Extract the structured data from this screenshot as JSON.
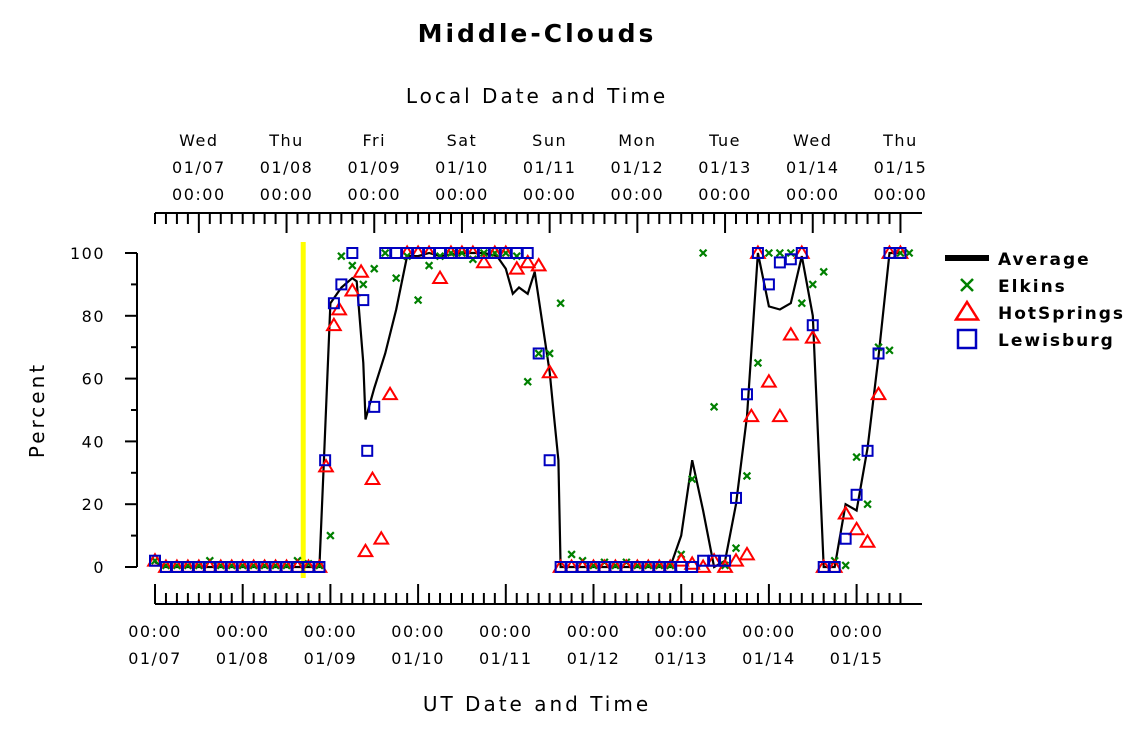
{
  "chart_data": {
    "type": "line",
    "title": "Middle-Clouds",
    "xlabel_top": "Local Date and Time",
    "xlabel": "UT Date and Time",
    "ylabel": "Percent",
    "ylim": [
      0,
      100
    ],
    "y_ticks": [
      "0",
      "20",
      "40",
      "60",
      "80",
      "100"
    ],
    "x_range_days": [
      0,
      8.6
    ],
    "top_ticks": [
      {
        "day": 0.5,
        "weekday": "Wed",
        "date": "01/07",
        "time": "00:00"
      },
      {
        "day": 1.5,
        "weekday": "Thu",
        "date": "01/08",
        "time": "00:00"
      },
      {
        "day": 2.5,
        "weekday": "Fri",
        "date": "01/09",
        "time": "00:00"
      },
      {
        "day": 3.5,
        "weekday": "Sat",
        "date": "01/10",
        "time": "00:00"
      },
      {
        "day": 4.5,
        "weekday": "Sun",
        "date": "01/11",
        "time": "00:00"
      },
      {
        "day": 5.5,
        "weekday": "Mon",
        "date": "01/12",
        "time": "00:00"
      },
      {
        "day": 6.5,
        "weekday": "Tue",
        "date": "01/13",
        "time": "00:00"
      },
      {
        "day": 7.5,
        "weekday": "Wed",
        "date": "01/14",
        "time": "00:00"
      },
      {
        "day": 8.5,
        "weekday": "Thu",
        "date": "01/15",
        "time": "00:00"
      }
    ],
    "bottom_ticks": [
      {
        "day": 0,
        "time": "00:00",
        "date": "01/07"
      },
      {
        "day": 1,
        "time": "00:00",
        "date": "01/08"
      },
      {
        "day": 2,
        "time": "00:00",
        "date": "01/09"
      },
      {
        "day": 3,
        "time": "00:00",
        "date": "01/10"
      },
      {
        "day": 4,
        "time": "00:00",
        "date": "01/11"
      },
      {
        "day": 5,
        "time": "00:00",
        "date": "01/12"
      },
      {
        "day": 6,
        "time": "00:00",
        "date": "01/13"
      },
      {
        "day": 7,
        "time": "00:00",
        "date": "01/14"
      },
      {
        "day": 8,
        "time": "00:00",
        "date": "01/15"
      }
    ],
    "marker_line_day": 1.69,
    "marker_line_color": "#ffff00",
    "legend_position": "right",
    "series": [
      {
        "name": "Average",
        "kind": "line",
        "color": "#000000",
        "points": [
          [
            0,
            1.5
          ],
          [
            0.125,
            0
          ],
          [
            0.25,
            0
          ],
          [
            0.5,
            0
          ],
          [
            0.75,
            0
          ],
          [
            1.0,
            0
          ],
          [
            1.25,
            0
          ],
          [
            1.5,
            0
          ],
          [
            1.75,
            0
          ],
          [
            1.875,
            0
          ],
          [
            1.92,
            30
          ],
          [
            2.0,
            84
          ],
          [
            2.125,
            89
          ],
          [
            2.25,
            92
          ],
          [
            2.3,
            91
          ],
          [
            2.375,
            65
          ],
          [
            2.4,
            47
          ],
          [
            2.5,
            57
          ],
          [
            2.625,
            68
          ],
          [
            2.75,
            82
          ],
          [
            2.875,
            99
          ],
          [
            3.0,
            99
          ],
          [
            3.125,
            100
          ],
          [
            3.25,
            99
          ],
          [
            3.5,
            100
          ],
          [
            3.75,
            100
          ],
          [
            3.9,
            99
          ],
          [
            4.0,
            95
          ],
          [
            4.08,
            87
          ],
          [
            4.15,
            89
          ],
          [
            4.25,
            87
          ],
          [
            4.33,
            94
          ],
          [
            4.5,
            62
          ],
          [
            4.55,
            48
          ],
          [
            4.6,
            34
          ],
          [
            4.625,
            0
          ],
          [
            4.75,
            0
          ],
          [
            5.0,
            0
          ],
          [
            5.25,
            0
          ],
          [
            5.5,
            0
          ],
          [
            5.75,
            0
          ],
          [
            5.875,
            0
          ],
          [
            6.0,
            10
          ],
          [
            6.125,
            34
          ],
          [
            6.25,
            18
          ],
          [
            6.375,
            0
          ],
          [
            6.5,
            2
          ],
          [
            6.625,
            20
          ],
          [
            6.75,
            48
          ],
          [
            6.875,
            100
          ],
          [
            7.0,
            83
          ],
          [
            7.125,
            82
          ],
          [
            7.25,
            84
          ],
          [
            7.375,
            99
          ],
          [
            7.5,
            80
          ],
          [
            7.625,
            0
          ],
          [
            7.75,
            0
          ],
          [
            7.875,
            20
          ],
          [
            8.0,
            18
          ],
          [
            8.125,
            38
          ],
          [
            8.25,
            67
          ],
          [
            8.375,
            100
          ],
          [
            8.5,
            100
          ]
        ]
      },
      {
        "name": "Elkins",
        "kind": "x",
        "color": "#008000",
        "points": [
          [
            0,
            2
          ],
          [
            0.125,
            0.5
          ],
          [
            0.25,
            0.5
          ],
          [
            0.375,
            0.5
          ],
          [
            0.5,
            0.5
          ],
          [
            0.625,
            2
          ],
          [
            0.75,
            0.5
          ],
          [
            0.875,
            0.5
          ],
          [
            1.0,
            0.5
          ],
          [
            1.125,
            0.5
          ],
          [
            1.25,
            0.5
          ],
          [
            1.375,
            0.5
          ],
          [
            1.5,
            0.5
          ],
          [
            1.625,
            2
          ],
          [
            1.75,
            1
          ],
          [
            1.875,
            0.5
          ],
          [
            2.0,
            10
          ],
          [
            2.125,
            99
          ],
          [
            2.25,
            96
          ],
          [
            2.375,
            90
          ],
          [
            2.5,
            95
          ],
          [
            2.625,
            100
          ],
          [
            2.75,
            92
          ],
          [
            2.875,
            99
          ],
          [
            3.0,
            85
          ],
          [
            3.125,
            96
          ],
          [
            3.25,
            99
          ],
          [
            3.375,
            100
          ],
          [
            3.5,
            100
          ],
          [
            3.625,
            98
          ],
          [
            3.75,
            100
          ],
          [
            3.875,
            100
          ],
          [
            4.0,
            100
          ],
          [
            4.125,
            99
          ],
          [
            4.25,
            59
          ],
          [
            4.375,
            68
          ],
          [
            4.5,
            68
          ],
          [
            4.625,
            84
          ],
          [
            4.75,
            4
          ],
          [
            4.875,
            2
          ],
          [
            5.0,
            0.5
          ],
          [
            5.125,
            1.5
          ],
          [
            5.25,
            0.5
          ],
          [
            5.375,
            1.5
          ],
          [
            5.5,
            0.5
          ],
          [
            5.625,
            0.5
          ],
          [
            5.75,
            0.5
          ],
          [
            5.875,
            0.5
          ],
          [
            6.0,
            4
          ],
          [
            6.125,
            28
          ],
          [
            6.25,
            100
          ],
          [
            6.375,
            51
          ],
          [
            6.5,
            0.5
          ],
          [
            6.625,
            6
          ],
          [
            6.75,
            29
          ],
          [
            6.875,
            65
          ],
          [
            7.0,
            100
          ],
          [
            7.125,
            100
          ],
          [
            7.25,
            100
          ],
          [
            7.375,
            84
          ],
          [
            7.5,
            90
          ],
          [
            7.625,
            94
          ],
          [
            7.75,
            2
          ],
          [
            7.875,
            0.5
          ],
          [
            8.0,
            35
          ],
          [
            8.125,
            20
          ],
          [
            8.25,
            70
          ],
          [
            8.375,
            69
          ],
          [
            8.5,
            100
          ],
          [
            8.6,
            100
          ]
        ]
      },
      {
        "name": "HotSprings",
        "kind": "triangle",
        "color": "#ff0000",
        "points": [
          [
            0,
            2
          ],
          [
            0.125,
            0
          ],
          [
            0.25,
            0
          ],
          [
            0.375,
            0
          ],
          [
            0.5,
            0
          ],
          [
            0.625,
            0
          ],
          [
            0.75,
            0
          ],
          [
            0.875,
            0
          ],
          [
            1.0,
            0
          ],
          [
            1.125,
            0
          ],
          [
            1.25,
            0
          ],
          [
            1.375,
            0
          ],
          [
            1.5,
            0
          ],
          [
            1.625,
            0
          ],
          [
            1.75,
            0
          ],
          [
            1.875,
            0
          ],
          [
            1.95,
            32
          ],
          [
            2.04,
            77
          ],
          [
            2.1,
            82
          ],
          [
            2.25,
            88
          ],
          [
            2.35,
            94
          ],
          [
            2.4,
            5
          ],
          [
            2.48,
            28
          ],
          [
            2.58,
            9
          ],
          [
            2.68,
            55
          ],
          [
            2.875,
            100
          ],
          [
            3.0,
            100
          ],
          [
            3.125,
            100
          ],
          [
            3.25,
            92
          ],
          [
            3.375,
            100
          ],
          [
            3.5,
            100
          ],
          [
            3.625,
            100
          ],
          [
            3.75,
            97
          ],
          [
            3.875,
            100
          ],
          [
            4.0,
            100
          ],
          [
            4.125,
            95
          ],
          [
            4.25,
            97
          ],
          [
            4.375,
            96
          ],
          [
            4.5,
            62
          ],
          [
            4.625,
            0
          ],
          [
            4.75,
            0
          ],
          [
            4.875,
            0
          ],
          [
            5.0,
            0
          ],
          [
            5.125,
            0
          ],
          [
            5.25,
            0
          ],
          [
            5.375,
            0
          ],
          [
            5.5,
            0
          ],
          [
            5.625,
            0
          ],
          [
            5.75,
            0
          ],
          [
            5.875,
            0
          ],
          [
            6.0,
            2
          ],
          [
            6.125,
            1
          ],
          [
            6.25,
            0
          ],
          [
            6.375,
            2
          ],
          [
            6.5,
            0
          ],
          [
            6.625,
            2
          ],
          [
            6.75,
            4
          ],
          [
            6.8,
            48
          ],
          [
            6.875,
            100
          ],
          [
            7.0,
            59
          ],
          [
            7.125,
            48
          ],
          [
            7.25,
            74
          ],
          [
            7.375,
            100
          ],
          [
            7.5,
            73
          ],
          [
            7.625,
            0
          ],
          [
            7.75,
            0
          ],
          [
            7.875,
            17
          ],
          [
            8.0,
            12
          ],
          [
            8.125,
            8
          ],
          [
            8.25,
            55
          ],
          [
            8.375,
            100
          ],
          [
            8.5,
            100
          ]
        ]
      },
      {
        "name": "Lewisburg",
        "kind": "square",
        "color": "#0000c0",
        "points": [
          [
            0,
            2
          ],
          [
            0.125,
            0
          ],
          [
            0.25,
            0
          ],
          [
            0.375,
            0
          ],
          [
            0.5,
            0
          ],
          [
            0.625,
            0
          ],
          [
            0.75,
            0
          ],
          [
            0.875,
            0
          ],
          [
            1.0,
            0
          ],
          [
            1.125,
            0
          ],
          [
            1.25,
            0
          ],
          [
            1.375,
            0
          ],
          [
            1.5,
            0
          ],
          [
            1.625,
            0
          ],
          [
            1.75,
            0
          ],
          [
            1.875,
            0
          ],
          [
            1.94,
            34
          ],
          [
            2.04,
            84
          ],
          [
            2.125,
            90
          ],
          [
            2.25,
            100
          ],
          [
            2.375,
            85
          ],
          [
            2.42,
            37
          ],
          [
            2.5,
            51
          ],
          [
            2.625,
            100
          ],
          [
            2.75,
            100
          ],
          [
            2.875,
            100
          ],
          [
            3.0,
            100
          ],
          [
            3.125,
            100
          ],
          [
            3.25,
            100
          ],
          [
            3.375,
            100
          ],
          [
            3.5,
            100
          ],
          [
            3.625,
            100
          ],
          [
            3.75,
            100
          ],
          [
            3.875,
            100
          ],
          [
            4.0,
            100
          ],
          [
            4.125,
            100
          ],
          [
            4.25,
            100
          ],
          [
            4.375,
            68
          ],
          [
            4.5,
            34
          ],
          [
            4.625,
            0
          ],
          [
            4.75,
            0
          ],
          [
            4.875,
            0
          ],
          [
            5.0,
            0
          ],
          [
            5.125,
            0
          ],
          [
            5.25,
            0
          ],
          [
            5.375,
            0
          ],
          [
            5.5,
            0
          ],
          [
            5.625,
            0
          ],
          [
            5.75,
            0
          ],
          [
            5.875,
            0
          ],
          [
            6.0,
            0
          ],
          [
            6.125,
            0
          ],
          [
            6.25,
            2
          ],
          [
            6.375,
            2
          ],
          [
            6.5,
            2
          ],
          [
            6.625,
            22
          ],
          [
            6.75,
            55
          ],
          [
            6.875,
            100
          ],
          [
            7.0,
            90
          ],
          [
            7.125,
            97
          ],
          [
            7.25,
            98
          ],
          [
            7.375,
            100
          ],
          [
            7.5,
            77
          ],
          [
            7.625,
            0
          ],
          [
            7.75,
            0
          ],
          [
            7.875,
            9
          ],
          [
            8.0,
            23
          ],
          [
            8.125,
            37
          ],
          [
            8.25,
            68
          ],
          [
            8.375,
            100
          ],
          [
            8.5,
            100
          ]
        ]
      }
    ]
  }
}
